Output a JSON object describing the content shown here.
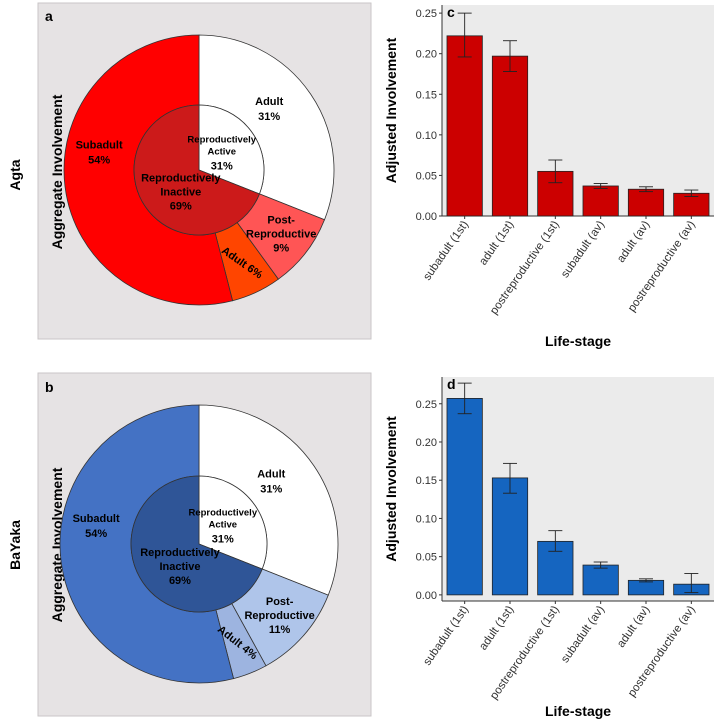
{
  "figure": {
    "rows": [
      {
        "title": "Agta"
      },
      {
        "title": "BaYaka"
      }
    ]
  },
  "chart_data": [
    {
      "panel": "a",
      "type": "pie",
      "group": "Agta",
      "axis_label": "Aggregate Involvement",
      "outer_ring": [
        {
          "name": "Adult",
          "value": 31,
          "label": "31%",
          "color": "#ffffff"
        },
        {
          "name": "Post-Reproductive",
          "value": 9,
          "label": "9%",
          "color": "#ff5555"
        },
        {
          "name": "Adult",
          "value": 6,
          "label": "6%",
          "color": "#ff4500"
        },
        {
          "name": "Subadult",
          "value": 54,
          "label": "54%",
          "color": "#ff0000"
        }
      ],
      "inner_ring": [
        {
          "name": "Reproductively Active",
          "value": 31,
          "label": "31%",
          "color": "#ffffff"
        },
        {
          "name": "Reproductively Inactive",
          "value": 69,
          "label": "69%",
          "color": "#cc1a1a"
        }
      ],
      "accent": "#ff0000"
    },
    {
      "panel": "b",
      "type": "pie",
      "group": "BaYaka",
      "axis_label": "Aggregate Involvement",
      "outer_ring": [
        {
          "name": "Adult",
          "value": 31,
          "label": "31%",
          "color": "#ffffff"
        },
        {
          "name": "Post-Reproductive",
          "value": 11,
          "label": "11%",
          "color": "#afc5ea"
        },
        {
          "name": "Adult",
          "value": 4,
          "label": "4%",
          "color": "#9db4e0"
        },
        {
          "name": "Subadult",
          "value": 54,
          "label": "54%",
          "color": "#4472c4"
        }
      ],
      "inner_ring": [
        {
          "name": "Reproductively Active",
          "value": 31,
          "label": "31%",
          "color": "#ffffff"
        },
        {
          "name": "Reproductively Inactive",
          "value": 69,
          "label": "69%",
          "color": "#2f5597"
        }
      ],
      "accent": "#4472c4"
    },
    {
      "panel": "c",
      "type": "bar",
      "group": "Agta",
      "categories": [
        "subadult (1st)",
        "adult (1st)",
        "postreproductive (1st)",
        "subadult (av)",
        "adult (av)",
        "postreproductive (av)"
      ],
      "values": [
        0.222,
        0.197,
        0.055,
        0.037,
        0.033,
        0.028
      ],
      "err_low": [
        0.196,
        0.178,
        0.041,
        0.034,
        0.03,
        0.024
      ],
      "err_high": [
        0.25,
        0.216,
        0.069,
        0.04,
        0.036,
        0.032
      ],
      "xlabel": "Life-stage",
      "ylabel": "Adjusted Involvement",
      "ylim": [
        0,
        0.26
      ],
      "yticks": [
        0.0,
        0.05,
        0.1,
        0.15,
        0.2,
        0.25
      ],
      "ytick_labels": [
        "0.00",
        "0.05",
        "0.10",
        "0.15",
        "0.20",
        "0.25"
      ],
      "bar_color": "#cc0000"
    },
    {
      "panel": "d",
      "type": "bar",
      "group": "BaYaka",
      "categories": [
        "subadult (1st)",
        "adult (1st)",
        "postreproductive (1st)",
        "subadult (av)",
        "adult (av)",
        "postreproductive (av)"
      ],
      "values": [
        0.257,
        0.153,
        0.07,
        0.039,
        0.019,
        0.014
      ],
      "err_low": [
        0.237,
        0.133,
        0.057,
        0.035,
        0.017,
        0.003
      ],
      "err_high": [
        0.277,
        0.172,
        0.084,
        0.043,
        0.021,
        0.028
      ],
      "xlabel": "Life-stage",
      "ylabel": "Adjusted Involvement",
      "ylim": [
        -0.008,
        0.285
      ],
      "yticks": [
        0.0,
        0.05,
        0.1,
        0.15,
        0.2,
        0.25
      ],
      "ytick_labels": [
        "0.00",
        "0.05",
        "0.10",
        "0.15",
        "0.20",
        "0.25"
      ],
      "bar_color": "#1565c0"
    }
  ]
}
